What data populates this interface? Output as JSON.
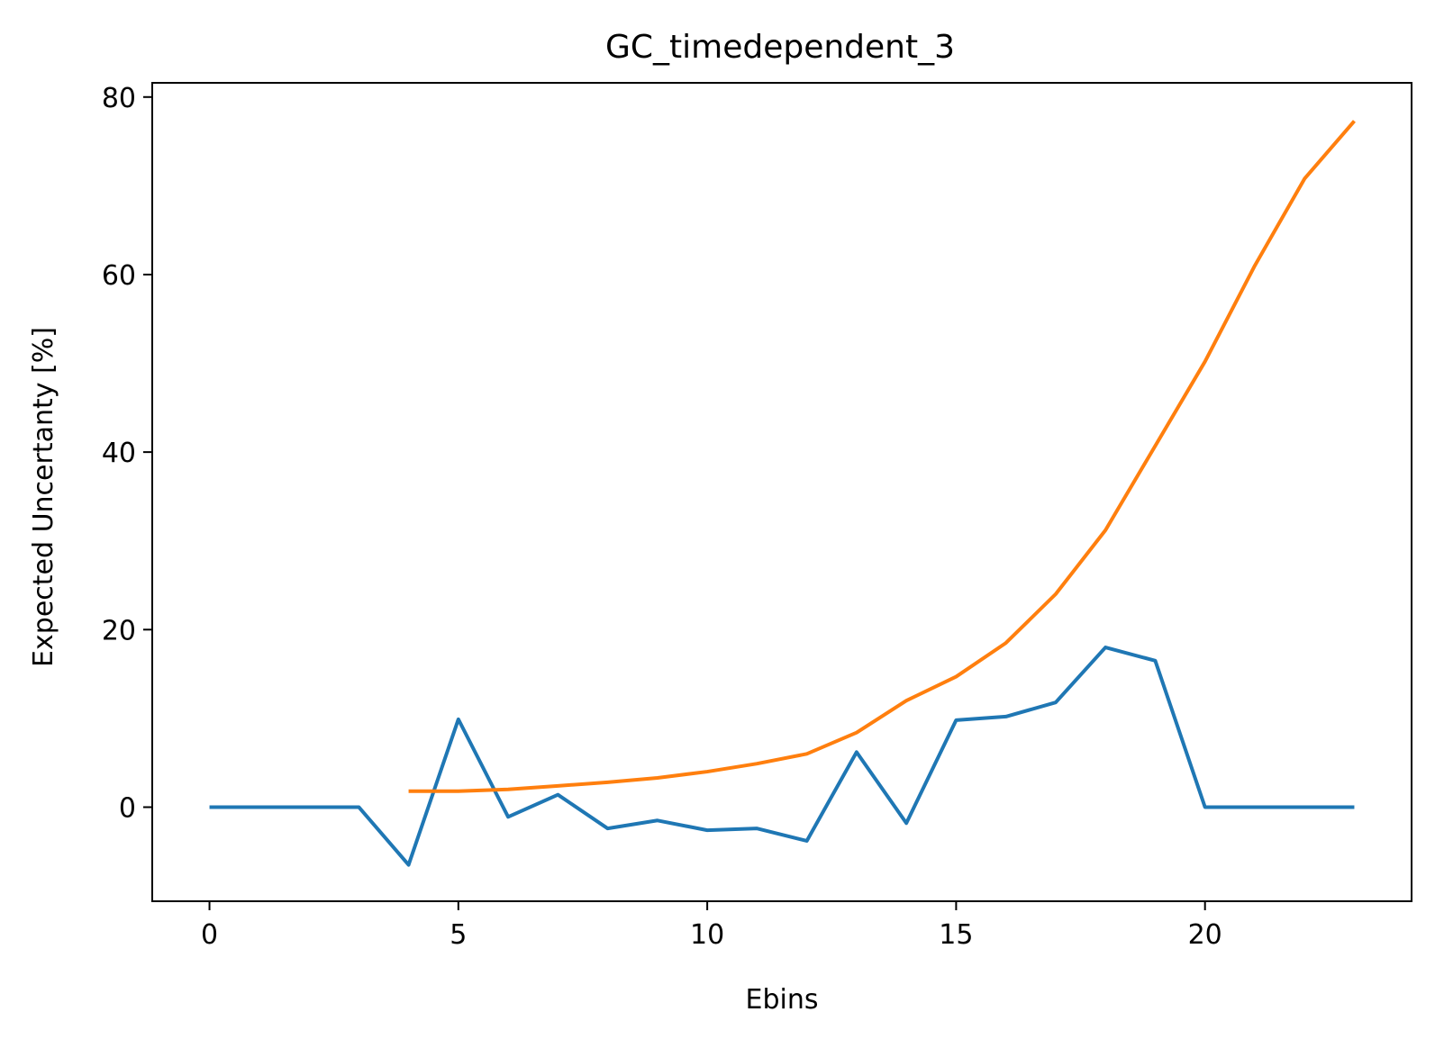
{
  "chart_data": {
    "type": "line",
    "title": "GC_timedependent_3",
    "xlabel": "Ebins",
    "ylabel": "Expected Uncertanty [%]",
    "xlim": [
      -1.15,
      24.15
    ],
    "ylim": [
      -10.6,
      81.6
    ],
    "xticks": [
      0,
      5,
      10,
      15,
      20
    ],
    "yticks": [
      0,
      20,
      40,
      60,
      80
    ],
    "grid": false,
    "legend": "none",
    "series": [
      {
        "color": "#1f77b4",
        "x": [
          0,
          1,
          2,
          3,
          4,
          5,
          6,
          7,
          8,
          9,
          10,
          11,
          12,
          13,
          14,
          15,
          16,
          17,
          18,
          19,
          20,
          21,
          22,
          23
        ],
        "y": [
          0,
          0,
          0,
          0,
          -6.5,
          9.9,
          -1.1,
          1.4,
          -2.4,
          -1.5,
          -2.6,
          -2.4,
          -3.8,
          6.2,
          -1.8,
          9.8,
          10.2,
          11.8,
          18.0,
          16.5,
          0,
          0,
          0,
          0
        ]
      },
      {
        "color": "#ff7f0e",
        "x": [
          4,
          5,
          6,
          7,
          8,
          9,
          10,
          11,
          12,
          13,
          14,
          15,
          16,
          17,
          18,
          19,
          20,
          21,
          22,
          23
        ],
        "y": [
          1.8,
          1.8,
          2.0,
          2.4,
          2.8,
          3.3,
          4.0,
          4.9,
          6.0,
          8.4,
          12.0,
          14.7,
          18.5,
          24.0,
          31.2,
          40.7,
          50.2,
          61.0,
          70.8,
          77.3
        ]
      }
    ]
  }
}
